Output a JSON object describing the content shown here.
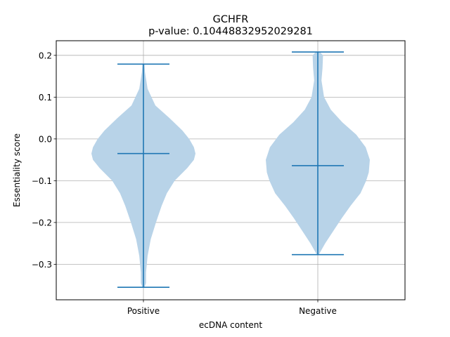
{
  "chart_data": {
    "type": "violin",
    "title": "GCHFR",
    "subtitle": "p-value: 0.10448832952029281",
    "xlabel": "ecDNA content",
    "ylabel": "Essentiality score",
    "categories": [
      "Positive",
      "Negative"
    ],
    "ylim": [
      -0.385,
      0.235
    ],
    "yticks": [
      -0.3,
      -0.2,
      -0.1,
      0.0,
      0.1,
      0.2
    ],
    "ytick_labels": [
      "−0.3",
      "−0.2",
      "−0.1",
      "0.0",
      "0.1",
      "0.2"
    ],
    "grid": true,
    "color_body": "#b8d3e8",
    "color_line": "#1f77b4",
    "violins": [
      {
        "name": "Positive",
        "min": -0.355,
        "max": 0.179,
        "median": -0.035,
        "profile": [
          [
            0.179,
            0.02
          ],
          [
            0.16,
            0.03
          ],
          [
            0.12,
            0.08
          ],
          [
            0.08,
            0.23
          ],
          [
            0.05,
            0.5
          ],
          [
            0.02,
            0.75
          ],
          [
            0.0,
            0.88
          ],
          [
            -0.02,
            0.97
          ],
          [
            -0.035,
            1.0
          ],
          [
            -0.05,
            0.97
          ],
          [
            -0.07,
            0.84
          ],
          [
            -0.1,
            0.6
          ],
          [
            -0.13,
            0.45
          ],
          [
            -0.16,
            0.35
          ],
          [
            -0.2,
            0.24
          ],
          [
            -0.24,
            0.14
          ],
          [
            -0.28,
            0.08
          ],
          [
            -0.32,
            0.05
          ],
          [
            -0.345,
            0.05
          ],
          [
            -0.355,
            0.02
          ]
        ]
      },
      {
        "name": "Negative",
        "min": -0.277,
        "max": 0.208,
        "median": -0.064,
        "profile": [
          [
            0.208,
            0.04
          ],
          [
            0.2,
            0.1
          ],
          [
            0.17,
            0.09
          ],
          [
            0.14,
            0.07
          ],
          [
            0.1,
            0.12
          ],
          [
            0.07,
            0.25
          ],
          [
            0.04,
            0.47
          ],
          [
            0.01,
            0.74
          ],
          [
            -0.02,
            0.92
          ],
          [
            -0.05,
            1.0
          ],
          [
            -0.08,
            0.98
          ],
          [
            -0.1,
            0.93
          ],
          [
            -0.13,
            0.82
          ],
          [
            -0.16,
            0.63
          ],
          [
            -0.19,
            0.46
          ],
          [
            -0.22,
            0.3
          ],
          [
            -0.25,
            0.14
          ],
          [
            -0.27,
            0.05
          ],
          [
            -0.277,
            0.02
          ]
        ]
      }
    ]
  }
}
